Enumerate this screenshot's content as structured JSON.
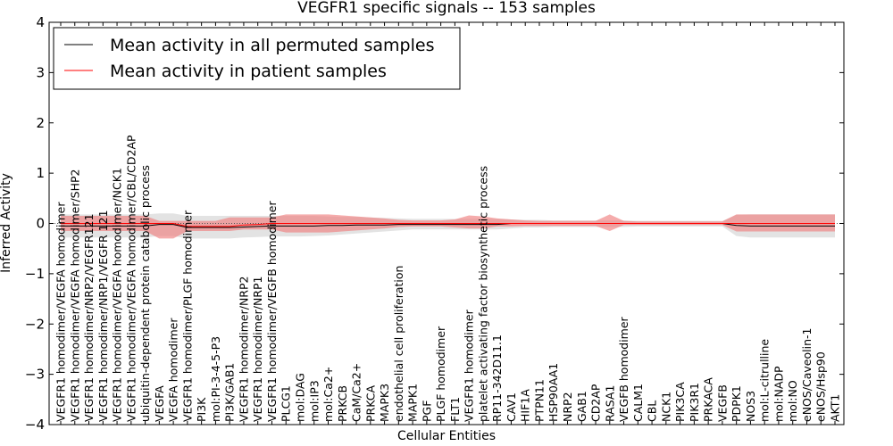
{
  "chart_data": {
    "type": "line",
    "title": "VEGFR1 specific signals -- 153 samples",
    "xlabel": "Cellular Entities",
    "ylabel": "Inferred Activity",
    "ylim": [
      -4,
      4
    ],
    "yticks": [
      4,
      3,
      2,
      1,
      0,
      -1,
      -2,
      -3,
      -4
    ],
    "ytick_labels": [
      "4",
      "3",
      "2",
      "1",
      "0",
      "−1",
      "−2",
      "−3",
      "−4"
    ],
    "legend": {
      "position": "top-left"
    },
    "categories": [
      "VEGFR1 homodimer/VEGFA homodimer",
      "VEGFR1 homodimer/VEGFA homodimer/SHP2",
      "VEGFR1 homodimer/NRP2/VEGFR121",
      "VEGFR1 homodimer/NRP1/VEGFR 121",
      "VEGFR1 homodimer/VEGFA homodimer/NCK1",
      "VEGFR1 homodimer/VEGFA homodimer/CBL/CD2AP",
      "ubiquitin-dependent protein catabolic process",
      "VEGFA",
      "VEGFA homodimer",
      "VEGFR1 homodimer/PLGF homodimer",
      "PI3K",
      "mol:PI-3-4-5-P3",
      "PI3K/GAB1",
      "VEGFR1 homodimer/NRP2",
      "VEGFR1 homodimer/NRP1",
      "VEGFR1 homodimer/VEGFB homodimer",
      "PLCG1",
      "mol:DAG",
      "mol:IP3",
      "mol:Ca2+",
      "PRKCB",
      "CaM/Ca2+",
      "PRKCA",
      "MAPK3",
      "endothelial cell proliferation",
      "MAPK1",
      "PGF",
      "PLGF homodimer",
      "FLT1",
      "VEGFR1 homodimer",
      "platelet activating factor biosynthetic process",
      "RP11-342D11.1",
      "CAV1",
      "HIF1A",
      "PTPN11",
      "HSP90AA1",
      "NRP2",
      "GAB1",
      "CD2AP",
      "RASA1",
      "VEGFB homodimer",
      "CALM1",
      "CBL",
      "NCK1",
      "PIK3CA",
      "PIK3R1",
      "PRKACA",
      "VEGFB",
      "PDPK1",
      "NOS3",
      "mol:L-citrulline",
      "mol:NADP",
      "mol:NO",
      "eNOS/Caveolin-1",
      "eNOS/Hsp90",
      "AKT1"
    ],
    "series": [
      {
        "name": "Mean activity in all permuted samples",
        "color": "#000000",
        "band_color": "#cccccc",
        "values": [
          -0.05,
          -0.05,
          -0.05,
          -0.05,
          -0.05,
          -0.05,
          -0.05,
          -0.02,
          -0.02,
          -0.08,
          -0.08,
          -0.08,
          -0.08,
          -0.07,
          -0.06,
          -0.05,
          -0.05,
          -0.05,
          -0.05,
          -0.04,
          -0.04,
          -0.03,
          -0.03,
          -0.03,
          -0.02,
          -0.02,
          -0.02,
          -0.02,
          -0.02,
          -0.02,
          -0.02,
          -0.02,
          0.0,
          0.0,
          0.0,
          0.0,
          0.0,
          0.0,
          0.0,
          0.0,
          0.0,
          0.0,
          0.0,
          0.0,
          0.0,
          0.0,
          0.0,
          0.0,
          -0.04,
          -0.05,
          -0.05,
          -0.05,
          -0.05,
          -0.05,
          -0.05,
          -0.05
        ],
        "lower": [
          -0.28,
          -0.28,
          -0.28,
          -0.28,
          -0.28,
          -0.28,
          -0.28,
          -0.25,
          -0.25,
          -0.3,
          -0.3,
          -0.3,
          -0.3,
          -0.28,
          -0.27,
          -0.26,
          -0.26,
          -0.26,
          -0.25,
          -0.24,
          -0.22,
          -0.2,
          -0.18,
          -0.16,
          -0.14,
          -0.12,
          -0.12,
          -0.12,
          -0.12,
          -0.12,
          -0.12,
          -0.12,
          -0.1,
          -0.08,
          -0.08,
          -0.07,
          -0.07,
          -0.07,
          -0.07,
          -0.07,
          -0.07,
          -0.06,
          -0.06,
          -0.06,
          -0.06,
          -0.06,
          -0.06,
          -0.06,
          -0.25,
          -0.28,
          -0.28,
          -0.28,
          -0.28,
          -0.28,
          -0.28,
          -0.28
        ],
        "upper": [
          0.18,
          0.18,
          0.18,
          0.18,
          0.18,
          0.18,
          0.18,
          0.2,
          0.2,
          0.15,
          0.15,
          0.15,
          0.15,
          0.15,
          0.15,
          0.15,
          0.15,
          0.15,
          0.15,
          0.14,
          0.13,
          0.13,
          0.12,
          0.11,
          0.1,
          0.09,
          0.09,
          0.09,
          0.09,
          0.09,
          0.09,
          0.09,
          0.08,
          0.07,
          0.07,
          0.06,
          0.06,
          0.06,
          0.06,
          0.06,
          0.06,
          0.05,
          0.05,
          0.05,
          0.05,
          0.05,
          0.05,
          0.05,
          0.17,
          0.18,
          0.18,
          0.18,
          0.18,
          0.18,
          0.18,
          0.18
        ]
      },
      {
        "name": "Mean activity in patient samples",
        "color": "#ff0000",
        "band_color": "#f08080",
        "values": [
          0.0,
          0.0,
          0.0,
          0.0,
          0.0,
          0.0,
          0.0,
          0.0,
          0.0,
          -0.06,
          -0.06,
          -0.06,
          -0.06,
          -0.03,
          -0.02,
          0.0,
          0.0,
          0.0,
          0.0,
          0.0,
          0.0,
          0.0,
          0.0,
          0.0,
          0.0,
          0.0,
          0.0,
          0.0,
          0.0,
          0.0,
          0.0,
          0.0,
          0.0,
          0.0,
          0.0,
          0.0,
          0.0,
          0.0,
          0.0,
          0.0,
          0.0,
          0.0,
          0.0,
          0.0,
          0.0,
          0.0,
          0.0,
          0.0,
          0.0,
          0.0,
          0.0,
          0.0,
          0.0,
          0.0,
          0.0,
          0.0
        ],
        "lower": [
          -0.15,
          -0.15,
          -0.15,
          -0.15,
          -0.15,
          -0.15,
          -0.15,
          -0.3,
          -0.3,
          -0.15,
          -0.15,
          -0.15,
          -0.15,
          -0.12,
          -0.12,
          -0.12,
          -0.18,
          -0.18,
          -0.18,
          -0.18,
          -0.16,
          -0.14,
          -0.12,
          -0.1,
          -0.07,
          -0.06,
          -0.06,
          -0.06,
          -0.08,
          -0.1,
          -0.1,
          -0.06,
          -0.06,
          -0.05,
          -0.05,
          -0.05,
          -0.05,
          -0.05,
          -0.05,
          -0.15,
          -0.03,
          -0.03,
          -0.03,
          -0.03,
          -0.03,
          -0.03,
          -0.03,
          -0.03,
          -0.16,
          -0.16,
          -0.16,
          -0.16,
          -0.16,
          -0.16,
          -0.16,
          -0.16
        ],
        "upper": [
          0.15,
          0.15,
          0.15,
          0.15,
          0.15,
          0.15,
          0.15,
          0.05,
          0.05,
          0.05,
          0.05,
          0.05,
          0.12,
          0.12,
          0.12,
          0.12,
          0.18,
          0.18,
          0.18,
          0.18,
          0.16,
          0.14,
          0.12,
          0.1,
          0.07,
          0.06,
          0.06,
          0.06,
          0.08,
          0.16,
          0.14,
          0.1,
          0.08,
          0.06,
          0.05,
          0.05,
          0.05,
          0.05,
          0.05,
          0.18,
          0.05,
          0.04,
          0.04,
          0.04,
          0.04,
          0.04,
          0.04,
          0.04,
          0.18,
          0.18,
          0.18,
          0.18,
          0.18,
          0.18,
          0.18,
          0.18
        ]
      }
    ]
  }
}
